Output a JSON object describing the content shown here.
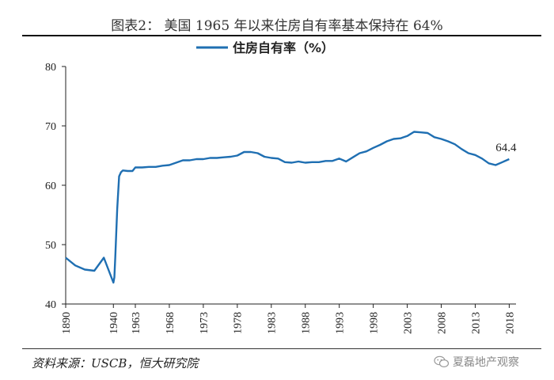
{
  "figure": {
    "title": "图表2： 美国 1965 年以来住房自有率基本保持在 64%",
    "source": "资料来源：USCB，恒大研究院",
    "watermark": "夏磊地产观察",
    "watermark_icon": "wechat-icon"
  },
  "colors": {
    "line": "#1f6fb2",
    "axis": "#222222"
  },
  "chart_data": {
    "type": "line",
    "title": "",
    "xlabel": "",
    "ylabel": "",
    "ylim": [
      40,
      80
    ],
    "yticks": [
      40,
      50,
      60,
      70,
      80
    ],
    "xlim": [
      1890,
      2019
    ],
    "xticks": [
      1890,
      1940,
      1963,
      1968,
      1973,
      1978,
      1983,
      1988,
      1993,
      1998,
      2003,
      2008,
      2013,
      2018
    ],
    "grid": false,
    "legend_position": "top-center",
    "series": [
      {
        "name": "住房自有率（%）",
        "points": [
          [
            1890,
            47.8
          ],
          [
            1900,
            46.5
          ],
          [
            1910,
            45.8
          ],
          [
            1920,
            45.6
          ],
          [
            1930,
            47.8
          ],
          [
            1940,
            43.6
          ],
          [
            1941,
            44.5
          ],
          [
            1942,
            48.0
          ],
          [
            1944,
            56.0
          ],
          [
            1946,
            61.5
          ],
          [
            1948,
            62.2
          ],
          [
            1950,
            62.5
          ],
          [
            1955,
            62.4
          ],
          [
            1960,
            62.4
          ],
          [
            1963,
            63.0
          ],
          [
            1964,
            63.0
          ],
          [
            1965,
            63.1
          ],
          [
            1966,
            63.1
          ],
          [
            1967,
            63.3
          ],
          [
            1968,
            63.4
          ],
          [
            1969,
            63.8
          ],
          [
            1970,
            64.2
          ],
          [
            1971,
            64.2
          ],
          [
            1972,
            64.4
          ],
          [
            1973,
            64.4
          ],
          [
            1974,
            64.6
          ],
          [
            1975,
            64.6
          ],
          [
            1976,
            64.7
          ],
          [
            1977,
            64.8
          ],
          [
            1978,
            65.0
          ],
          [
            1979,
            65.6
          ],
          [
            1980,
            65.6
          ],
          [
            1981,
            65.4
          ],
          [
            1982,
            64.8
          ],
          [
            1983,
            64.6
          ],
          [
            1984,
            64.5
          ],
          [
            1985,
            63.9
          ],
          [
            1986,
            63.8
          ],
          [
            1987,
            64.0
          ],
          [
            1988,
            63.8
          ],
          [
            1989,
            63.9
          ],
          [
            1990,
            63.9
          ],
          [
            1991,
            64.1
          ],
          [
            1992,
            64.1
          ],
          [
            1993,
            64.5
          ],
          [
            1994,
            64.0
          ],
          [
            1995,
            64.7
          ],
          [
            1996,
            65.4
          ],
          [
            1997,
            65.7
          ],
          [
            1998,
            66.3
          ],
          [
            1999,
            66.8
          ],
          [
            2000,
            67.4
          ],
          [
            2001,
            67.8
          ],
          [
            2002,
            67.9
          ],
          [
            2003,
            68.3
          ],
          [
            2004,
            69.0
          ],
          [
            2005,
            68.9
          ],
          [
            2006,
            68.8
          ],
          [
            2007,
            68.1
          ],
          [
            2008,
            67.8
          ],
          [
            2009,
            67.4
          ],
          [
            2010,
            66.9
          ],
          [
            2011,
            66.1
          ],
          [
            2012,
            65.4
          ],
          [
            2013,
            65.1
          ],
          [
            2014,
            64.5
          ],
          [
            2015,
            63.7
          ],
          [
            2016,
            63.4
          ],
          [
            2017,
            63.9
          ],
          [
            2018,
            64.4
          ]
        ]
      }
    ],
    "annotations": [
      {
        "x": 2018,
        "y": 64.4,
        "text": "64.4"
      }
    ]
  }
}
